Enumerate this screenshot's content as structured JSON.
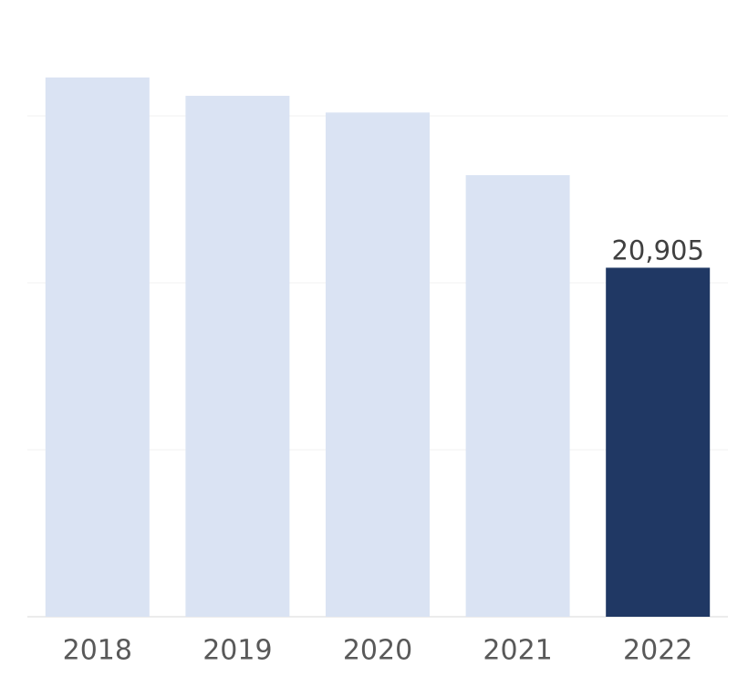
{
  "chart_data": {
    "type": "bar",
    "categories": [
      "2018",
      "2019",
      "2020",
      "2021",
      "2022"
    ],
    "values": [
      32300,
      31200,
      30200,
      26450,
      20905
    ],
    "value_labels": [
      null,
      null,
      null,
      null,
      "20,905"
    ],
    "colors": [
      "#dae3f3",
      "#dae3f3",
      "#dae3f3",
      "#dae3f3",
      "#203864"
    ],
    "ylim": [
      0,
      35000
    ],
    "yticks": [
      0,
      10000,
      20000,
      30000
    ],
    "grid": true
  }
}
